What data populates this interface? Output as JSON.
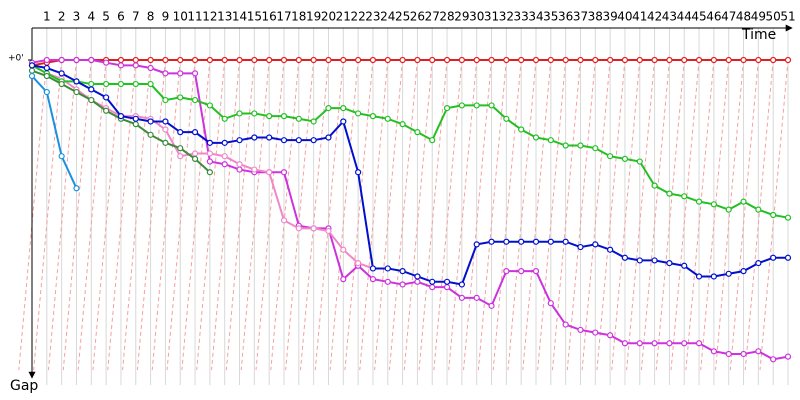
{
  "chart_data": {
    "type": "line",
    "x_label": "Time",
    "y_label": "Gap",
    "x": [
      0,
      1,
      2,
      3,
      4,
      5,
      6,
      7,
      8,
      9,
      10,
      11,
      12,
      13,
      14,
      15,
      16,
      17,
      18,
      19,
      20,
      21,
      22,
      23,
      24,
      25,
      26,
      27,
      28,
      29,
      30,
      31,
      32,
      33,
      34,
      35,
      36,
      37,
      38,
      39,
      40,
      41,
      42,
      43,
      44,
      45,
      46,
      47,
      48,
      49,
      50,
      51
    ],
    "xlim": [
      0,
      51
    ],
    "xticks": [
      1,
      2,
      3,
      4,
      5,
      6,
      7,
      8,
      9,
      10,
      11,
      12,
      13,
      14,
      15,
      16,
      17,
      18,
      19,
      20,
      21,
      22,
      23,
      24,
      25,
      26,
      27,
      28,
      29,
      30,
      31,
      32,
      33,
      34,
      35,
      36,
      37,
      38,
      39,
      40,
      41,
      42,
      43,
      44,
      45,
      46,
      47,
      48,
      49,
      50,
      51
    ],
    "ylim": [
      0,
      116
    ],
    "yticks": [
      {
        "value": 0,
        "label": "+0'"
      }
    ],
    "inverted_y": true,
    "series": [
      {
        "color": "#e02020",
        "values": [
          2,
          1,
          0,
          0,
          0,
          0,
          0,
          0,
          0,
          0,
          0,
          0,
          0,
          0,
          0,
          0,
          0,
          0,
          0,
          0,
          0,
          0,
          0,
          0,
          0,
          0,
          0,
          0,
          0,
          0,
          0,
          0,
          0,
          0,
          0,
          0,
          0,
          0,
          0,
          0,
          0,
          0,
          0,
          0,
          0,
          0,
          0,
          0,
          0,
          0,
          0,
          0
        ]
      },
      {
        "color": "#cc33dd",
        "values": [
          1,
          0,
          0,
          0,
          0,
          1,
          2,
          2,
          3,
          5,
          5,
          5,
          38,
          39,
          41,
          42,
          42,
          42,
          62,
          63,
          63,
          82,
          77,
          82,
          83,
          84,
          83,
          85,
          85,
          89,
          89,
          92,
          79,
          79,
          79,
          91,
          99,
          101,
          102,
          103,
          106,
          106,
          106,
          106,
          106,
          106,
          109,
          110,
          110,
          109,
          112,
          111
        ]
      },
      {
        "color": "#f088c8",
        "values": [
          2,
          5,
          7,
          11,
          15,
          18,
          21,
          21,
          22,
          26,
          36,
          35,
          35,
          36,
          39,
          41,
          42,
          60,
          63,
          63,
          64,
          71,
          76,
          78,
          null,
          null,
          null,
          null,
          null,
          null,
          null,
          null,
          null,
          null,
          null,
          null,
          null,
          null,
          null,
          null,
          null,
          null,
          null,
          null,
          null,
          null,
          null,
          null,
          null,
          null,
          null,
          null
        ]
      },
      {
        "color": "#22c022",
        "values": [
          2,
          5,
          8,
          8,
          9,
          9,
          9,
          9,
          9,
          15,
          14,
          15,
          17,
          22,
          20,
          20,
          21,
          21,
          22,
          23,
          18,
          18,
          20,
          21,
          22,
          24,
          27,
          30,
          18,
          17,
          17,
          17,
          22,
          26,
          29,
          30,
          32,
          32,
          33,
          36,
          37,
          38,
          47,
          50,
          51,
          53,
          54,
          56,
          53,
          56,
          58,
          59
        ]
      },
      {
        "color": "#3a8a3a",
        "values": [
          4,
          6,
          9,
          12,
          15,
          19,
          22,
          24,
          28,
          31,
          33,
          37,
          42,
          null,
          null,
          null,
          null,
          null,
          null,
          null,
          null,
          null,
          null,
          null,
          null,
          null,
          null,
          null,
          null,
          null,
          null,
          null,
          null,
          null,
          null,
          null,
          null,
          null,
          null,
          null,
          null,
          null,
          null,
          null,
          null,
          null,
          null,
          null,
          null,
          null,
          null,
          null
        ]
      },
      {
        "color": "#0010cc",
        "values": [
          2,
          3,
          5,
          8,
          11,
          14,
          21,
          22,
          23,
          23,
          27,
          27,
          31,
          31,
          30,
          29,
          29,
          30,
          30,
          30,
          29,
          23,
          42,
          78,
          78,
          79,
          81,
          83,
          83,
          84,
          69,
          68,
          68,
          68,
          68,
          68,
          68,
          70,
          69,
          71,
          74,
          75,
          75,
          76,
          77,
          81,
          81,
          80,
          79,
          76,
          74,
          74
        ]
      },
      {
        "color": "#1a90e0",
        "values": [
          6,
          12,
          36,
          48,
          null,
          null,
          null,
          null,
          null,
          null,
          null,
          null,
          null,
          null,
          null,
          null,
          null,
          null,
          null,
          null,
          null,
          null,
          null,
          null,
          null,
          null,
          null,
          null,
          null,
          null,
          null,
          null,
          null,
          null,
          null,
          null,
          null,
          null,
          null,
          null,
          null,
          null,
          null,
          null,
          null,
          null,
          null,
          null,
          null,
          null,
          null,
          null
        ]
      }
    ]
  }
}
